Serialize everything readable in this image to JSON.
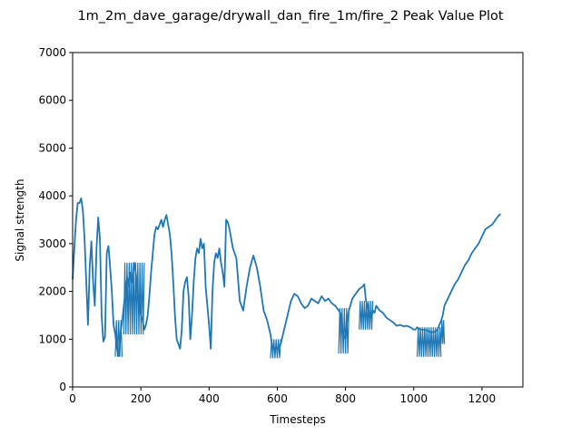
{
  "chart_data": {
    "type": "line",
    "title": "1m_2m_dave_garage/drywall_dan_fire_1m/fire_2 Peak Value Plot",
    "xlabel": "Timesteps",
    "ylabel": "Signal strength",
    "xlim": [
      0,
      1320
    ],
    "ylim": [
      0,
      7000
    ],
    "xticks": [
      0,
      200,
      400,
      600,
      800,
      1000,
      1200
    ],
    "yticks": [
      0,
      1000,
      2000,
      3000,
      4000,
      5000,
      6000,
      7000
    ],
    "grid": false,
    "series": [
      {
        "color": "#1f77b4",
        "x": [
          0,
          5,
          10,
          15,
          20,
          25,
          30,
          35,
          40,
          45,
          50,
          55,
          60,
          65,
          70,
          75,
          80,
          85,
          90,
          95,
          100,
          105,
          110,
          115,
          120,
          125,
          130,
          135,
          140,
          145,
          150,
          155,
          160,
          165,
          170,
          175,
          180,
          185,
          190,
          195,
          200,
          205,
          210,
          215,
          220,
          225,
          230,
          235,
          240,
          245,
          250,
          255,
          260,
          265,
          270,
          275,
          280,
          285,
          290,
          295,
          300,
          305,
          310,
          315,
          320,
          325,
          330,
          335,
          340,
          345,
          350,
          355,
          360,
          365,
          370,
          375,
          380,
          385,
          390,
          395,
          400,
          405,
          410,
          415,
          420,
          425,
          430,
          435,
          440,
          445,
          450,
          455,
          460,
          470,
          480,
          490,
          500,
          510,
          520,
          530,
          540,
          550,
          560,
          570,
          580,
          585,
          590,
          595,
          600,
          605,
          610,
          620,
          630,
          640,
          650,
          660,
          670,
          680,
          690,
          700,
          710,
          720,
          730,
          740,
          750,
          760,
          770,
          780,
          785,
          790,
          795,
          800,
          805,
          810,
          820,
          830,
          840,
          850,
          855,
          860,
          865,
          870,
          875,
          880,
          885,
          890,
          895,
          900,
          910,
          920,
          930,
          940,
          950,
          960,
          970,
          980,
          990,
          1000,
          1005,
          1010,
          1015,
          1020,
          1030,
          1040,
          1050,
          1060,
          1070,
          1075,
          1080,
          1085,
          1090,
          1100,
          1110,
          1120,
          1130,
          1140,
          1150,
          1160,
          1170,
          1180,
          1190,
          1200,
          1210,
          1220,
          1230,
          1240,
          1250,
          1255
        ],
        "y": [
          2250,
          2900,
          3500,
          3850,
          3850,
          3950,
          3700,
          3100,
          2200,
          1300,
          2500,
          3050,
          2200,
          1700,
          2900,
          3550,
          3100,
          1500,
          950,
          1050,
          2800,
          2950,
          2500,
          2000,
          1300,
          1100,
          800,
          650,
          1100,
          1350,
          1700,
          2000,
          2300,
          2100,
          2400,
          2200,
          2600,
          2400,
          2000,
          1800,
          1500,
          1400,
          1200,
          1300,
          1500,
          1900,
          2400,
          2800,
          3200,
          3350,
          3300,
          3400,
          3500,
          3350,
          3500,
          3600,
          3400,
          3200,
          2800,
          2200,
          1500,
          1000,
          900,
          800,
          1200,
          2000,
          2200,
          2300,
          1900,
          1000,
          1500,
          2200,
          2700,
          2900,
          2800,
          3100,
          2900,
          3000,
          2100,
          1700,
          1300,
          800,
          2000,
          2600,
          2800,
          2700,
          2900,
          2600,
          2400,
          2100,
          3500,
          3450,
          3300,
          2900,
          2700,
          1800,
          1600,
          2100,
          2500,
          2750,
          2500,
          2100,
          1600,
          1400,
          1100,
          850,
          800,
          820,
          800,
          850,
          900,
          1200,
          1500,
          1800,
          1950,
          1900,
          1750,
          1650,
          1700,
          1850,
          1800,
          1750,
          1900,
          1800,
          1850,
          1750,
          1700,
          1600,
          1550,
          1200,
          1050,
          1000,
          1400,
          1600,
          1850,
          1950,
          2050,
          2100,
          2150,
          1800,
          1700,
          1500,
          1450,
          1600,
          1550,
          1700,
          1650,
          1600,
          1550,
          1450,
          1400,
          1350,
          1280,
          1300,
          1270,
          1280,
          1250,
          1200,
          1200,
          1250,
          1220,
          1200,
          1200,
          1180,
          1150,
          1150,
          1200,
          1300,
          1380,
          1500,
          1700,
          1850,
          2000,
          2150,
          2250,
          2400,
          2550,
          2650,
          2800,
          2900,
          3000,
          3150,
          3300,
          3350,
          3400,
          3500,
          3600,
          3620
        ]
      }
    ],
    "oscillation_bands": [
      {
        "x": [
          150,
          210
        ],
        "low": 1100,
        "high": 2600
      },
      {
        "x": [
          125,
          145
        ],
        "low": 630,
        "high": 1400
      },
      {
        "x": [
          580,
          610
        ],
        "low": 600,
        "high": 1000
      },
      {
        "x": [
          780,
          810
        ],
        "low": 700,
        "high": 1650
      },
      {
        "x": [
          840,
          880
        ],
        "low": 1200,
        "high": 1800
      },
      {
        "x": [
          1010,
          1080
        ],
        "low": 630,
        "high": 1250
      },
      {
        "x": [
          1080,
          1090
        ],
        "low": 900,
        "high": 1400
      }
    ]
  }
}
